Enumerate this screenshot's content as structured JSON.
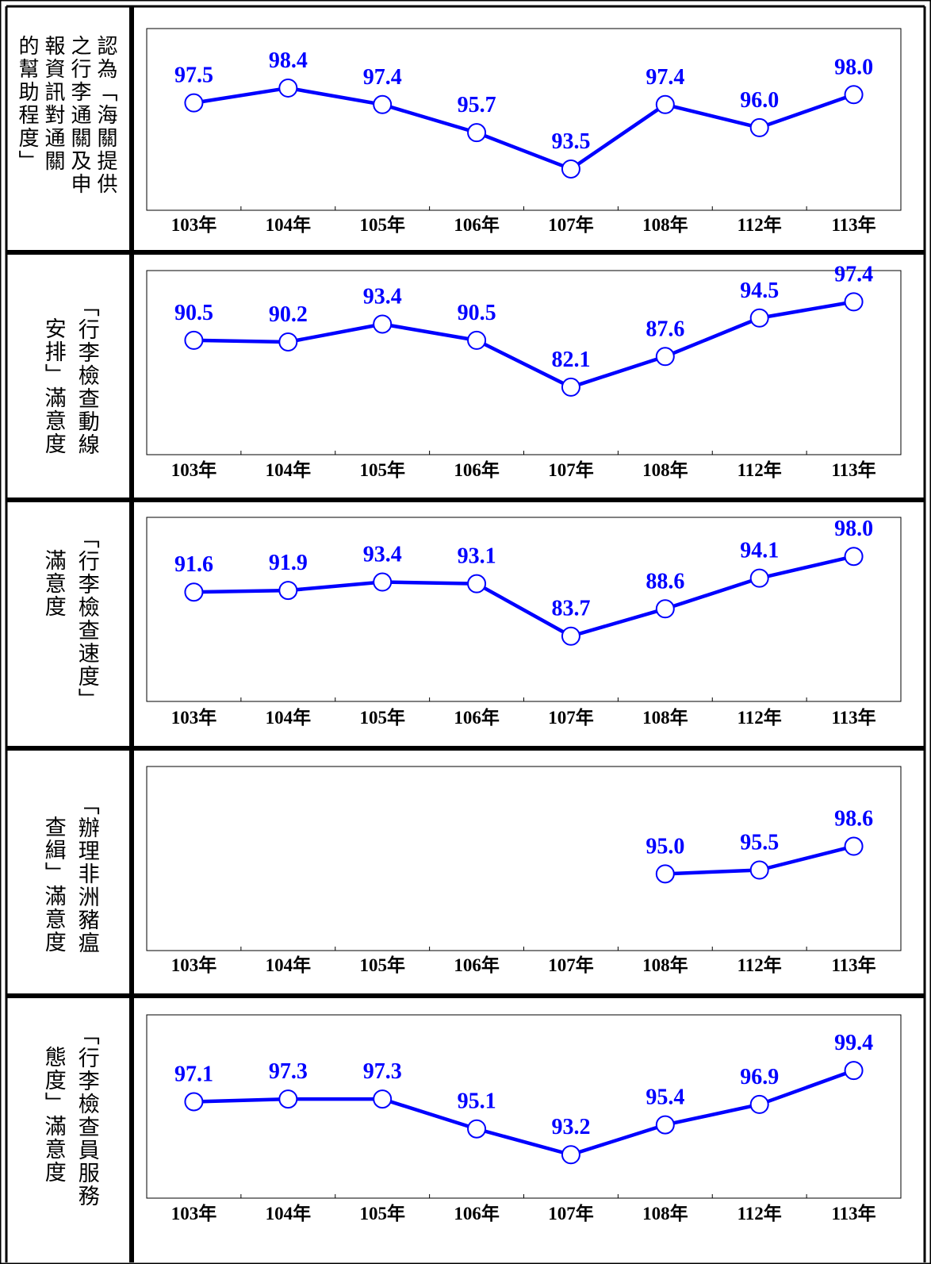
{
  "colors": {
    "line": "#0000ff",
    "marker_fill": "#ffffff",
    "frame": "#000000"
  },
  "rows": [
    {
      "label_lines": [
        "報資訊對通關",
        "的幫助程度"
      ],
      "label_mode": "horizontal-columns",
      "label_columns": [
        "認為「海關提供",
        "之行李通關及申",
        "報資訊對通關",
        "的幫助程度」"
      ]
    },
    {
      "label_columns": [
        "「行李檢查動線",
        "安排」滿意度"
      ]
    },
    {
      "label_columns": [
        "「行李檢查速度」",
        "滿意度"
      ]
    },
    {
      "label_columns": [
        "「辦理非洲豬瘟",
        "查緝」滿意度"
      ]
    },
    {
      "label_columns": [
        "「行李檢查員服務",
        "態度」滿意度"
      ]
    }
  ],
  "chart_data": [
    {
      "type": "line",
      "categories": [
        "103年",
        "104年",
        "105年",
        "106年",
        "107年",
        "108年",
        "112年",
        "113年"
      ],
      "values": [
        97.5,
        98.4,
        97.4,
        95.7,
        93.5,
        97.4,
        96.0,
        98.0
      ],
      "labels": [
        "97.5",
        "98.4",
        "97.4",
        "95.7",
        "93.5",
        "97.4",
        "96.0",
        "98.0"
      ]
    },
    {
      "type": "line",
      "categories": [
        "103年",
        "104年",
        "105年",
        "106年",
        "107年",
        "108年",
        "112年",
        "113年"
      ],
      "values": [
        90.5,
        90.2,
        93.4,
        90.5,
        82.1,
        87.6,
        94.5,
        97.4
      ],
      "labels": [
        "90.5",
        "90.2",
        "93.4",
        "90.5",
        "82.1",
        "87.6",
        "94.5",
        "97.4"
      ]
    },
    {
      "type": "line",
      "categories": [
        "103年",
        "104年",
        "105年",
        "106年",
        "107年",
        "108年",
        "112年",
        "113年"
      ],
      "values": [
        91.6,
        91.9,
        93.4,
        93.1,
        83.7,
        88.6,
        94.1,
        98.0
      ],
      "labels": [
        "91.6",
        "91.9",
        "93.4",
        "93.1",
        "83.7",
        "88.6",
        "94.1",
        "98.0"
      ]
    },
    {
      "type": "line",
      "categories": [
        "103年",
        "104年",
        "105年",
        "106年",
        "107年",
        "108年",
        "112年",
        "113年"
      ],
      "values": [
        null,
        null,
        null,
        null,
        null,
        95.0,
        95.5,
        98.6
      ],
      "labels": [
        "",
        "",
        "",
        "",
        "",
        "95.0",
        "95.5",
        "98.6"
      ]
    },
    {
      "type": "line",
      "categories": [
        "103年",
        "104年",
        "105年",
        "106年",
        "107年",
        "108年",
        "112年",
        "113年"
      ],
      "values": [
        97.1,
        97.3,
        97.3,
        95.1,
        93.2,
        95.4,
        96.9,
        99.4
      ],
      "labels": [
        "97.1",
        "97.3",
        "97.3",
        "95.1",
        "93.2",
        "95.4",
        "96.9",
        "99.4"
      ]
    }
  ]
}
